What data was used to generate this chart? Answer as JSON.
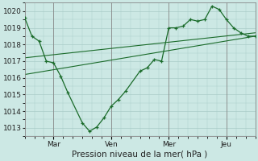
{
  "bg_color": "#cce8e4",
  "line_color": "#1a6b2a",
  "grid_color": "#aaccc8",
  "ylim": [
    1012.5,
    1020.5
  ],
  "yticks": [
    1013,
    1014,
    1015,
    1016,
    1017,
    1018,
    1019,
    1020
  ],
  "xlabel": "Pression niveau de la mer( hPa )",
  "xtick_labels": [
    "Mar",
    "Ven",
    "Mer",
    "Jeu"
  ],
  "xtick_positions": [
    24,
    72,
    120,
    168
  ],
  "xlim": [
    0,
    192
  ],
  "line1_x": [
    0,
    6,
    12,
    18,
    24,
    30,
    36,
    48,
    54,
    60,
    66,
    72,
    78,
    84,
    96,
    102,
    108,
    114,
    120,
    126,
    132,
    138,
    144,
    150,
    156,
    162,
    168,
    174,
    180,
    186,
    192
  ],
  "line1_y": [
    1019.6,
    1018.5,
    1018.2,
    1017.0,
    1016.9,
    1016.1,
    1015.1,
    1013.3,
    1012.8,
    1013.05,
    1013.6,
    1014.3,
    1014.7,
    1015.2,
    1016.4,
    1016.6,
    1017.1,
    1017.0,
    1019.0,
    1019.0,
    1019.1,
    1019.5,
    1019.4,
    1019.5,
    1020.3,
    1020.1,
    1019.5,
    1019.0,
    1018.7,
    1018.5,
    1018.5
  ],
  "line2_x": [
    0,
    192
  ],
  "line2_y": [
    1017.2,
    1018.7
  ],
  "line3_x": [
    0,
    192
  ],
  "line3_y": [
    1016.2,
    1018.5
  ],
  "axis_fontsize": 7.5,
  "tick_fontsize": 6.5
}
